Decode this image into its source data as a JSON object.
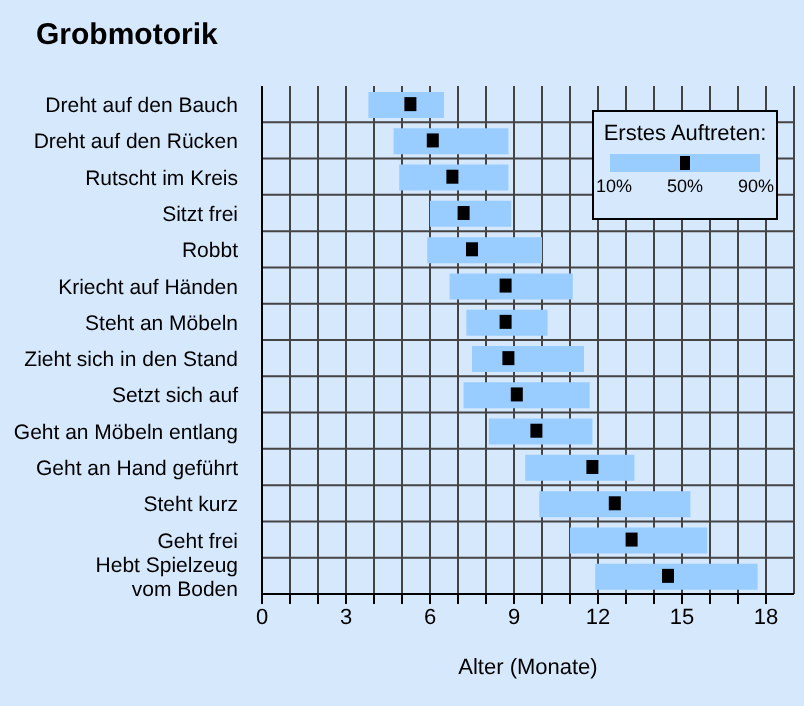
{
  "chart_data": {
    "type": "bar",
    "orientation": "horizontal",
    "title": "Grobmotorik",
    "xlabel": "Alter (Monate)",
    "categories": [
      "Dreht auf den Bauch",
      "Dreht auf den Rücken",
      "Rutscht im Kreis",
      "Sitzt frei",
      "Robbt",
      "Kriecht auf Händen",
      "Steht an Möbeln",
      "Zieht sich in den Stand",
      "Setzt sich auf",
      "Geht an Möbeln entlang",
      "Geht an Hand geführt",
      "Steht kurz",
      "Geht frei",
      "Hebt Spielzeug vom Boden"
    ],
    "series": [
      {
        "color": "#99ccff",
        "base": [
          3.8,
          4.7,
          4.9,
          6.0,
          5.9,
          6.7,
          7.3,
          7.5,
          7.2,
          8.1,
          9.4,
          9.9,
          11.0,
          11.9
        ],
        "values": [
          2.7,
          4.1,
          3.9,
          2.9,
          4.1,
          4.4,
          2.9,
          4.0,
          4.5,
          3.7,
          3.9,
          5.4,
          4.9,
          5.8
        ]
      },
      {
        "type": "scatter",
        "color": "#000000",
        "marker": "square",
        "values": [
          5.3,
          6.1,
          6.8,
          7.2,
          7.5,
          8.7,
          8.7,
          8.8,
          9.1,
          9.8,
          11.8,
          12.6,
          13.2,
          14.5
        ]
      }
    ],
    "xlim": [
      0,
      19
    ],
    "xticks": [
      0,
      {
        "value": 1,
        "label": null
      },
      {
        "value": 2,
        "label": null
      },
      3,
      {
        "value": 4,
        "label": null
      },
      {
        "value": 5,
        "label": null
      },
      6,
      {
        "value": 7,
        "label": null
      },
      {
        "value": 8,
        "label": null
      },
      9,
      {
        "value": 10,
        "label": null
      },
      {
        "value": 11,
        "label": null
      },
      12,
      {
        "value": 13,
        "label": null
      },
      {
        "value": 14,
        "label": null
      },
      15,
      {
        "value": 16,
        "label": null
      },
      {
        "value": 17,
        "label": null
      },
      18
    ],
    "grid": true,
    "legend_title": "Erstes Auftreten:",
    "annotations": [
      "10%",
      "50%",
      "90%"
    ]
  }
}
